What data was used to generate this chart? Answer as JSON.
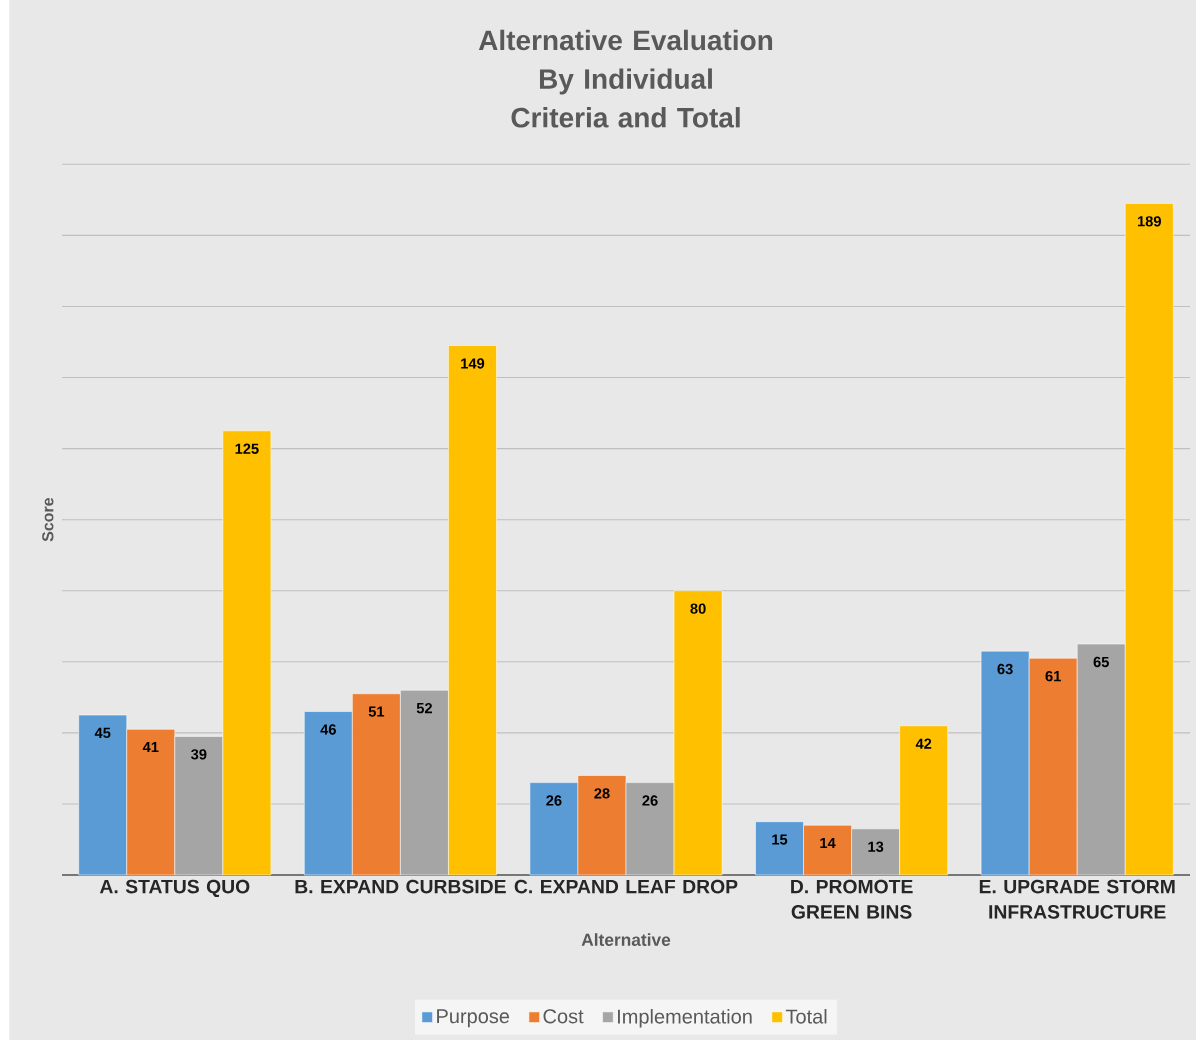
{
  "chart_data": {
    "type": "bar",
    "title": "Alternative Evaluation By Individual Criteria and Total",
    "xlabel": "Alternative",
    "ylabel": "Score",
    "categories": [
      "A. STATUS QUO",
      "B. EXPAND CURBSIDE",
      "C. EXPAND LEAF DROP",
      "D. PROMOTE GREEN BINS",
      "E. UPGRADE STORM INFRASTRUCTURE"
    ],
    "series": [
      {
        "name": "Purpose",
        "color": "#5b9bd5",
        "values": [
          45,
          46,
          26,
          15,
          63
        ]
      },
      {
        "name": "Cost",
        "color": "#ed7d31",
        "values": [
          41,
          51,
          28,
          14,
          61
        ]
      },
      {
        "name": "Implementation",
        "color": "#a5a5a5",
        "values": [
          39,
          52,
          26,
          13,
          65
        ]
      },
      {
        "name": "Total",
        "color": "#ffc000",
        "values": [
          125,
          149,
          80,
          42,
          189
        ]
      }
    ],
    "ylim": [
      0,
      200
    ],
    "yticks": [
      {
        "value": 0,
        "label": null
      },
      {
        "value": 20,
        "label": null
      },
      {
        "value": 40,
        "label": null
      },
      {
        "value": 60,
        "label": null
      },
      {
        "value": 80,
        "label": null
      },
      {
        "value": 100,
        "label": null
      },
      {
        "value": 120,
        "label": null
      },
      {
        "value": 140,
        "label": null
      },
      {
        "value": 160,
        "label": null
      },
      {
        "value": 180,
        "label": null
      },
      {
        "value": 200,
        "label": null
      }
    ],
    "tick_labels": "x",
    "grid": "y",
    "legend": "bottom",
    "data_labels": true
  }
}
